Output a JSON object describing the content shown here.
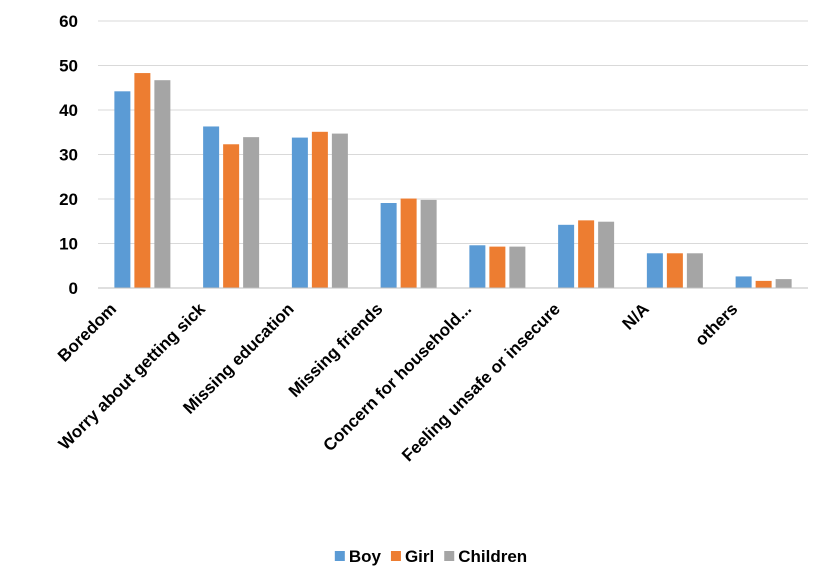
{
  "chart_data": {
    "type": "bar",
    "categories": [
      "Boredom",
      "Worry about getting sick",
      "Missing education",
      "Missing friends",
      "Concern for household...",
      "Feeling unsafe or insecure",
      "N/A",
      "others"
    ],
    "series": [
      {
        "name": "Boy",
        "color": "#5B9BD5",
        "values": [
          44.2,
          36.3,
          33.8,
          19.1,
          9.6,
          14.2,
          7.8,
          2.6
        ]
      },
      {
        "name": "Girl",
        "color": "#ED7D31",
        "values": [
          48.3,
          32.3,
          35.1,
          20.1,
          9.3,
          15.2,
          7.8,
          1.6
        ]
      },
      {
        "name": "Children",
        "color": "#A5A5A5",
        "values": [
          46.7,
          33.9,
          34.7,
          19.8,
          9.3,
          14.9,
          7.8,
          2.0
        ]
      }
    ],
    "ylim": [
      0,
      60
    ],
    "yticks": [
      0,
      10,
      20,
      30,
      40,
      50,
      60
    ],
    "grid": true,
    "legend": "bottom"
  }
}
